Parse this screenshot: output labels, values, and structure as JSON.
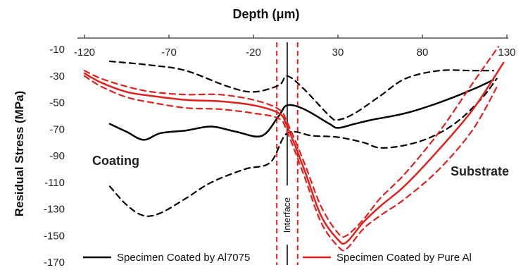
{
  "chart_data": {
    "type": "line",
    "title": "Depth (μm)",
    "ylabel": "Residual Stress (MPa)",
    "xlim": [
      -120,
      130
    ],
    "ylim": [
      -170,
      -10
    ],
    "x_ticks": [
      -120,
      -70,
      -20,
      30,
      80,
      130
    ],
    "x_tick_labels": [
      "-120",
      "-70",
      "-20",
      "30",
      "80",
      "130"
    ],
    "y_ticks": [
      -10,
      -30,
      -50,
      -70,
      -90,
      -110,
      -130,
      -150,
      -170
    ],
    "y_tick_labels": [
      "-10",
      "-30",
      "-50",
      "-70",
      "-90",
      "-110",
      "-130",
      "-150",
      "-170"
    ],
    "annotations": {
      "coating": "Coating",
      "substrate": "Substrate",
      "interface": "Interface",
      "interface_x": 0,
      "interface_band": [
        -2,
        2
      ]
    },
    "colors": {
      "al7075": "#000000",
      "pure_al": "#e0201c"
    },
    "legend_position": "bottom",
    "series": [
      {
        "name": "Specimen Coated by Al7075",
        "color": "#000000",
        "style": "solid",
        "points": [
          [
            -105,
            -66
          ],
          [
            -95,
            -72
          ],
          [
            -85,
            -78
          ],
          [
            -75,
            -73
          ],
          [
            -60,
            -71
          ],
          [
            -45,
            -68
          ],
          [
            -30,
            -72
          ],
          [
            -15,
            -75
          ],
          [
            -5,
            -60
          ],
          [
            0,
            -52
          ],
          [
            10,
            -55
          ],
          [
            25,
            -66
          ],
          [
            30,
            -69
          ],
          [
            40,
            -66
          ],
          [
            50,
            -63
          ],
          [
            70,
            -58
          ],
          [
            90,
            -50
          ],
          [
            110,
            -40
          ],
          [
            122,
            -33
          ]
        ]
      },
      {
        "name": "Al7075 upper bound",
        "color": "#000000",
        "style": "dashed",
        "points": [
          [
            -105,
            -19
          ],
          [
            -80,
            -22
          ],
          [
            -60,
            -26
          ],
          [
            -35,
            -38
          ],
          [
            -20,
            -42
          ],
          [
            -5,
            -37
          ],
          [
            0,
            -30
          ],
          [
            10,
            -40
          ],
          [
            25,
            -60
          ],
          [
            30,
            -63
          ],
          [
            40,
            -58
          ],
          [
            55,
            -45
          ],
          [
            70,
            -32
          ],
          [
            90,
            -26
          ],
          [
            110,
            -26
          ],
          [
            122,
            -26
          ]
        ]
      },
      {
        "name": "Al7075 lower bound",
        "color": "#000000",
        "style": "dashed",
        "points": [
          [
            -105,
            -113
          ],
          [
            -95,
            -127
          ],
          [
            -85,
            -135
          ],
          [
            -75,
            -133
          ],
          [
            -60,
            -122
          ],
          [
            -45,
            -110
          ],
          [
            -25,
            -100
          ],
          [
            -10,
            -95
          ],
          [
            0,
            -73
          ],
          [
            15,
            -75
          ],
          [
            30,
            -76
          ],
          [
            45,
            -80
          ],
          [
            55,
            -84
          ],
          [
            70,
            -82
          ],
          [
            85,
            -76
          ],
          [
            100,
            -65
          ],
          [
            115,
            -47
          ],
          [
            124,
            -32
          ]
        ]
      },
      {
        "name": "Specimen Coated by Pure Al",
        "color": "#e0201c",
        "style": "solid",
        "points": [
          [
            -120,
            -28
          ],
          [
            -110,
            -35
          ],
          [
            -95,
            -42
          ],
          [
            -80,
            -45
          ],
          [
            -60,
            -48
          ],
          [
            -40,
            -49
          ],
          [
            -20,
            -52
          ],
          [
            -5,
            -58
          ],
          [
            0,
            -68
          ],
          [
            10,
            -100
          ],
          [
            20,
            -135
          ],
          [
            30,
            -153
          ],
          [
            35,
            -155
          ],
          [
            45,
            -140
          ],
          [
            55,
            -128
          ],
          [
            70,
            -112
          ],
          [
            90,
            -85
          ],
          [
            110,
            -55
          ],
          [
            128,
            -20
          ]
        ]
      },
      {
        "name": "Pure Al upper bound",
        "color": "#e0201c",
        "style": "dashed",
        "points": [
          [
            -120,
            -26
          ],
          [
            -110,
            -32
          ],
          [
            -95,
            -38
          ],
          [
            -80,
            -42
          ],
          [
            -60,
            -44
          ],
          [
            -40,
            -44
          ],
          [
            -20,
            -48
          ],
          [
            -5,
            -55
          ],
          [
            0,
            -65
          ],
          [
            10,
            -95
          ],
          [
            20,
            -128
          ],
          [
            30,
            -148
          ],
          [
            35,
            -150
          ],
          [
            45,
            -138
          ],
          [
            55,
            -122
          ],
          [
            70,
            -103
          ],
          [
            90,
            -72
          ],
          [
            110,
            -35
          ],
          [
            125,
            -8
          ]
        ]
      },
      {
        "name": "Pure Al lower bound",
        "color": "#e0201c",
        "style": "dashed",
        "points": [
          [
            -120,
            -30
          ],
          [
            -110,
            -38
          ],
          [
            -95,
            -46
          ],
          [
            -80,
            -50
          ],
          [
            -60,
            -54
          ],
          [
            -40,
            -55
          ],
          [
            -20,
            -58
          ],
          [
            -5,
            -62
          ],
          [
            0,
            -72
          ],
          [
            10,
            -105
          ],
          [
            20,
            -140
          ],
          [
            30,
            -158
          ],
          [
            35,
            -160
          ],
          [
            45,
            -145
          ],
          [
            55,
            -135
          ],
          [
            70,
            -122
          ],
          [
            90,
            -100
          ],
          [
            110,
            -70
          ],
          [
            125,
            -36
          ]
        ]
      }
    ],
    "legend": [
      {
        "label": "Specimen Coated by Al7075",
        "color": "#000000"
      },
      {
        "label": "Specimen Coated by Pure Al",
        "color": "#e0201c"
      }
    ]
  }
}
